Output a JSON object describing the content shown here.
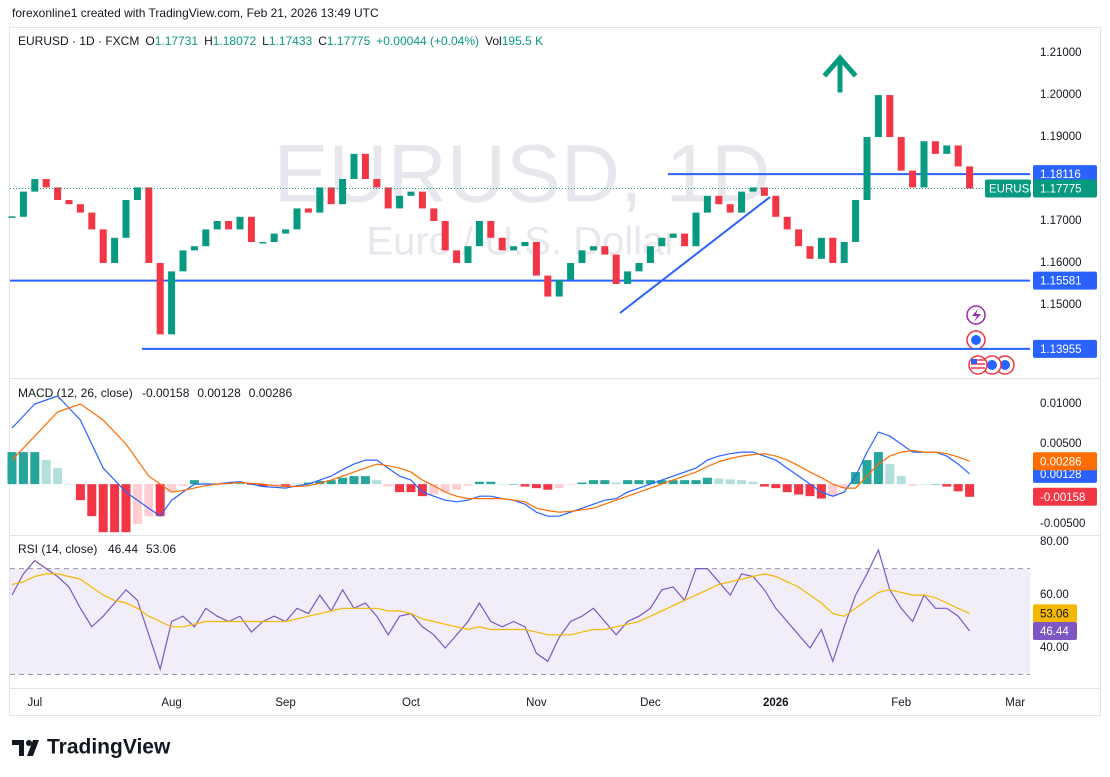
{
  "header": {
    "credit": "forexonline1 created with TradingView.com, Feb 21, 2026 13:49 UTC"
  },
  "footer": {
    "brand": "TradingView"
  },
  "chart_data": [
    {
      "type": "candlestick",
      "title": "EURUSD · 1D · FXCM",
      "watermark_title": "EURUSD, 1D",
      "watermark_subtitle": "Euro / U.S. Dollar",
      "ohlc": [
        {
          "label": "O",
          "value": 1.17731
        },
        {
          "label": "H",
          "value": 1.18072
        },
        {
          "label": "L",
          "value": 1.17433
        },
        {
          "label": "C",
          "value": 1.17775
        }
      ],
      "change": "+0.00044 (+0.04%)",
      "volume_label": "Vol",
      "volume": "195.5 K",
      "categories": [
        null,
        null,
        "Jul",
        null,
        null,
        null,
        null,
        null,
        null,
        null,
        null,
        null,
        null,
        null,
        "Aug",
        null,
        null,
        null,
        null,
        null,
        null,
        null,
        null,
        null,
        "Sep",
        null,
        null,
        null,
        null,
        null,
        null,
        null,
        null,
        null,
        null,
        "Oct",
        null,
        null,
        null,
        null,
        null,
        null,
        null,
        null,
        null,
        null,
        "Nov",
        null,
        null,
        null,
        null,
        null,
        null,
        null,
        null,
        null,
        "Dec",
        null,
        null,
        null,
        null,
        null,
        null,
        null,
        null,
        null,
        null,
        "2026",
        null,
        null,
        null,
        null,
        null,
        null,
        null,
        null,
        null,
        null,
        "Feb",
        null,
        null,
        null,
        null,
        null,
        null,
        null,
        null,
        null,
        "Mar"
      ],
      "series": [
        {
          "name": "EURUSD",
          "up_color": "#089981",
          "down_color": "#f23645",
          "values": [
            1.171,
            1.177,
            1.18,
            1.178,
            1.175,
            1.174,
            1.172,
            1.168,
            1.16,
            1.166,
            1.175,
            1.178,
            1.16,
            1.143,
            1.158,
            1.163,
            1.164,
            1.168,
            1.17,
            1.168,
            1.171,
            1.165,
            1.165,
            1.167,
            1.168,
            1.173,
            1.172,
            1.178,
            1.174,
            1.18,
            1.186,
            1.18,
            1.178,
            1.173,
            1.176,
            1.177,
            1.173,
            1.17,
            1.163,
            1.16,
            1.164,
            1.17,
            1.166,
            1.163,
            1.164,
            1.165,
            1.157,
            1.152,
            1.156,
            1.16,
            1.163,
            1.164,
            1.162,
            1.155,
            1.158,
            1.16,
            1.164,
            1.166,
            1.167,
            1.164,
            1.172,
            1.176,
            1.174,
            1.172,
            1.177,
            1.178,
            1.176,
            1.171,
            1.168,
            1.164,
            1.161,
            1.166,
            1.16,
            1.165,
            1.175,
            1.19,
            1.2,
            1.19,
            1.182,
            1.178,
            1.189,
            1.186,
            1.188,
            1.183,
            1.17775,
            null,
            null,
            null,
            null
          ]
        }
      ],
      "levels": [
        {
          "value": 1.18116,
          "color": "#2962ff"
        },
        {
          "value": 1.15581,
          "color": "#2962ff"
        },
        {
          "value": 1.13955,
          "color": "#2962ff"
        }
      ],
      "ylim": [
        1.1326,
        1.2155
      ],
      "yticks": [
        {
          "value": 1.21,
          "label": "1.21000"
        },
        {
          "value": 1.2,
          "label": "1.20000"
        },
        {
          "value": 1.19,
          "label": "1.19000"
        },
        {
          "value": 1.17,
          "label": "1.17000"
        },
        {
          "value": 1.16,
          "label": "1.16000"
        },
        {
          "value": 1.15,
          "label": "1.15000"
        }
      ],
      "grid": false
    },
    {
      "type": "macd",
      "title": "MACD (12, 26, close)",
      "ylim": [
        -0.0061,
        0.013
      ],
      "yticks": [
        {
          "value": 0.01,
          "label": "0.01000"
        },
        {
          "value": 0.005,
          "label": "0.00500"
        },
        {
          "value": -0.005,
          "label": "-0.00500"
        }
      ],
      "series": [
        {
          "kind": "histogram",
          "color": "#f23645",
          "up_color": "#26a69a",
          "values": [
            0.004,
            0.004,
            0.004,
            0.003,
            0.002,
            0,
            -0.002,
            -0.004,
            -0.006,
            -0.006,
            -0.006,
            -0.005,
            -0.004,
            -0.004,
            -0.001,
            -0.0002,
            0.0005,
            0.0002,
            0,
            0.0001,
            0.0001,
            -0.0001,
            -0.0003,
            -0.0002,
            -0.0002,
            0.0001,
            0.0002,
            0.0004,
            0.0005,
            0.0008,
            0.001,
            0.001,
            0.0005,
            -0.0003,
            -0.001,
            -0.001,
            -0.0015,
            -0.0013,
            -0.001,
            -0.0007,
            -0.0002,
            0.0003,
            0.0003,
            0,
            0,
            -0.0003,
            -0.0005,
            -0.0007,
            -0.0005,
            -0.0001,
            0.0002,
            0.0005,
            0.0005,
            0.0002,
            0.0005,
            0.0005,
            0.0005,
            0.0005,
            0.0005,
            0.0005,
            0.0005,
            0.0008,
            0.0007,
            0.0006,
            0.0005,
            0.0003,
            -0.0003,
            -0.0005,
            -0.001,
            -0.0013,
            -0.0015,
            -0.0018,
            -0.0015,
            -0.0005,
            0.0015,
            0.003,
            0.004,
            0.0025,
            0.001,
            -0.0002,
            0,
            0,
            -0.0003,
            -0.0009,
            -0.00158
          ]
        },
        {
          "kind": "line",
          "color": "#2962ff",
          "values": [
            0.007,
            0.0085,
            0.01,
            0.0105,
            0.011,
            0.0095,
            0.008,
            0.005,
            0.002,
            0.0005,
            -0.001,
            -0.002,
            -0.003,
            -0.004,
            -0.002,
            -0.001,
            0,
            0,
            0,
            0.0002,
            0.0003,
            0,
            -0.0003,
            -0.0004,
            -0.0005,
            -0.0002,
            0,
            0.0005,
            0.001,
            0.0018,
            0.0025,
            0.003,
            0.003,
            0.002,
            0.001,
            0.0005,
            -0.001,
            -0.0015,
            -0.002,
            -0.0022,
            -0.002,
            -0.0015,
            -0.0015,
            -0.0018,
            -0.002,
            -0.0025,
            -0.0035,
            -0.004,
            -0.004,
            -0.0035,
            -0.003,
            -0.0025,
            -0.002,
            -0.0018,
            -0.001,
            -0.0005,
            0,
            0.0005,
            0.001,
            0.0015,
            0.002,
            0.003,
            0.0035,
            0.0038,
            0.004,
            0.004,
            0.0035,
            0.003,
            0.002,
            0.001,
            0,
            -0.001,
            -0.0015,
            -0.001,
            0.001,
            0.004,
            0.0065,
            0.006,
            0.005,
            0.004,
            0.004,
            0.004,
            0.0035,
            0.0025,
            0.00128
          ]
        },
        {
          "kind": "line",
          "color": "#ff6d00",
          "values": [
            0.003,
            0.0045,
            0.006,
            0.0075,
            0.009,
            0.0095,
            0.01,
            0.009,
            0.008,
            0.0065,
            0.005,
            0.003,
            0.001,
            0,
            -0.001,
            -0.0008,
            -0.0005,
            -0.0002,
            0,
            0.0001,
            0.0002,
            0.0001,
            0,
            -0.0002,
            -0.0003,
            -0.0003,
            -0.0002,
            0.0001,
            0.0005,
            0.001,
            0.0015,
            0.002,
            0.0025,
            0.0023,
            0.002,
            0.0015,
            0.0005,
            -0.0002,
            -0.001,
            -0.0015,
            -0.0018,
            -0.0018,
            -0.0018,
            -0.0018,
            -0.002,
            -0.0022,
            -0.003,
            -0.0033,
            -0.0035,
            -0.0034,
            -0.0032,
            -0.003,
            -0.0025,
            -0.002,
            -0.0015,
            -0.001,
            -0.0005,
            0,
            0.0005,
            0.001,
            0.0015,
            0.0022,
            0.0028,
            0.0032,
            0.0035,
            0.0037,
            0.0038,
            0.0035,
            0.003,
            0.0023,
            0.0015,
            0.0008,
            0,
            -0.0005,
            -0.0005,
            0.001,
            0.0025,
            0.0035,
            0.004,
            0.0042,
            0.004,
            0.004,
            0.0038,
            0.0034,
            0.00286
          ]
        }
      ]
    },
    {
      "type": "rsi",
      "title": "RSI (14, close)",
      "ylim": [
        24.9,
        82.3
      ],
      "yticks": [
        {
          "value": 80,
          "label": "80.00"
        },
        {
          "value": 60,
          "label": "60.00"
        },
        {
          "value": 40,
          "label": "40.00"
        }
      ],
      "bands": [
        70,
        30
      ],
      "series": [
        {
          "color": "#7e57c2",
          "values": [
            60,
            68,
            73,
            70,
            67,
            63,
            55,
            48,
            52,
            57,
            62,
            58,
            45,
            32,
            50,
            52,
            48,
            55,
            52,
            50,
            52,
            46,
            50,
            52,
            50,
            55,
            53,
            60,
            54,
            62,
            55,
            57,
            52,
            45,
            52,
            53,
            48,
            45,
            40,
            45,
            50,
            57,
            50,
            48,
            50,
            48,
            38,
            35,
            44,
            50,
            52,
            55,
            50,
            45,
            50,
            52,
            55,
            62,
            63,
            58,
            70,
            70,
            65,
            60,
            68,
            67,
            62,
            55,
            50,
            45,
            40,
            47,
            35,
            48,
            60,
            68,
            77,
            62,
            55,
            50,
            60,
            55,
            55,
            52,
            46.44
          ]
        },
        {
          "color": "#f5b800",
          "values": [
            64,
            65,
            67,
            68,
            68,
            67,
            66,
            63,
            60,
            58,
            57,
            55,
            52,
            50,
            48,
            48,
            49,
            50,
            50,
            50,
            50,
            50,
            50,
            50,
            50,
            51,
            52,
            53,
            54,
            55,
            55,
            55,
            55,
            54,
            54,
            53,
            51,
            50,
            49,
            48,
            47,
            48,
            47,
            47,
            47,
            47,
            46,
            45,
            45,
            45,
            46,
            47,
            47,
            48,
            49,
            50,
            52,
            54,
            56,
            58,
            60,
            62,
            64,
            65,
            66,
            67,
            68,
            67,
            65,
            63,
            60,
            57,
            53,
            52,
            55,
            58,
            61,
            62,
            61,
            60,
            60,
            59,
            57,
            55,
            53.06
          ]
        }
      ]
    }
  ]
}
